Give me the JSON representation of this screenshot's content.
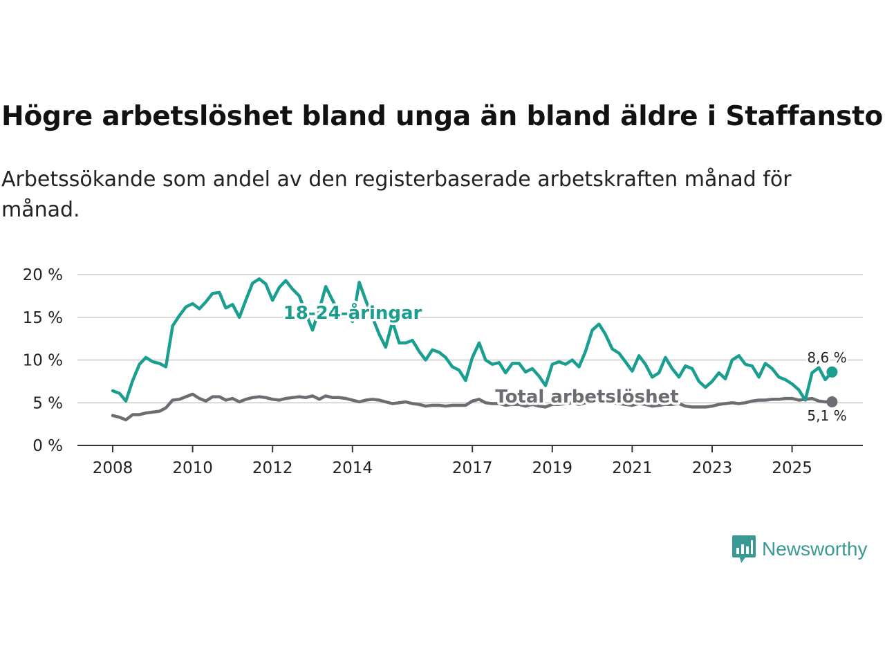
{
  "chart_data": {
    "type": "line",
    "title": "Högre arbetslöshet bland unga än bland äldre i Staffanstorp",
    "subtitle": "Arbetssökande som andel av den registerbaserade arbetskraften månad för månad.",
    "xlabel": "",
    "ylabel": "",
    "ylim": [
      0,
      20
    ],
    "xlim": [
      2008,
      2026
    ],
    "y_ticks": [
      "0 %",
      "5 %",
      "10 %",
      "15 %",
      "20 %"
    ],
    "x_ticks": [
      "2008",
      "2010",
      "2012",
      "2014",
      "2017",
      "2019",
      "2021",
      "2023",
      "2025"
    ],
    "grid": "horizontal",
    "series": [
      {
        "name": "18-24-åringar",
        "color": "#1a9e90",
        "end_label": "8,6 %",
        "x": [
          2008.0,
          2008.17,
          2008.33,
          2008.5,
          2008.67,
          2008.83,
          2009.0,
          2009.17,
          2009.33,
          2009.5,
          2009.67,
          2009.83,
          2010.0,
          2010.17,
          2010.33,
          2010.5,
          2010.67,
          2010.83,
          2011.0,
          2011.17,
          2011.33,
          2011.5,
          2011.67,
          2011.83,
          2012.0,
          2012.17,
          2012.33,
          2012.5,
          2012.67,
          2012.83,
          2013.0,
          2013.17,
          2013.33,
          2013.5,
          2013.67,
          2013.83,
          2014.0,
          2014.17,
          2014.33,
          2014.5,
          2014.67,
          2014.83,
          2015.0,
          2015.17,
          2015.33,
          2015.5,
          2015.67,
          2015.83,
          2016.0,
          2016.17,
          2016.33,
          2016.5,
          2016.67,
          2016.83,
          2017.0,
          2017.17,
          2017.33,
          2017.5,
          2017.67,
          2017.83,
          2018.0,
          2018.17,
          2018.33,
          2018.5,
          2018.67,
          2018.83,
          2019.0,
          2019.17,
          2019.33,
          2019.5,
          2019.67,
          2019.83,
          2020.0,
          2020.17,
          2020.33,
          2020.5,
          2020.67,
          2020.83,
          2021.0,
          2021.17,
          2021.33,
          2021.5,
          2021.67,
          2021.83,
          2022.0,
          2022.17,
          2022.33,
          2022.5,
          2022.67,
          2022.83,
          2023.0,
          2023.17,
          2023.33,
          2023.5,
          2023.67,
          2023.83,
          2024.0,
          2024.17,
          2024.33,
          2024.5,
          2024.67,
          2024.83,
          2025.0,
          2025.17,
          2025.33,
          2025.5,
          2025.67,
          2025.83,
          2026.0
        ],
        "values": [
          6.4,
          6.1,
          5.2,
          7.6,
          9.5,
          10.3,
          9.8,
          9.6,
          9.2,
          14.0,
          15.2,
          16.2,
          16.6,
          16.0,
          16.8,
          17.8,
          17.9,
          16.1,
          16.5,
          15.0,
          17.0,
          19.0,
          19.5,
          18.9,
          17.0,
          18.5,
          19.3,
          18.3,
          17.5,
          15.5,
          13.5,
          15.9,
          18.6,
          17.0,
          15.5,
          15.5,
          14.5,
          19.1,
          17.0,
          15.0,
          13.0,
          11.5,
          14.5,
          12.0,
          12.0,
          12.3,
          11.0,
          10.0,
          11.2,
          10.9,
          10.3,
          9.2,
          8.8,
          7.6,
          10.3,
          12.0,
          10.0,
          9.5,
          9.7,
          8.5,
          9.6,
          9.6,
          8.6,
          9.0,
          8.1,
          7.0,
          9.5,
          9.8,
          9.5,
          10.0,
          9.2,
          11.0,
          13.5,
          14.2,
          13.0,
          11.3,
          10.8,
          9.8,
          8.7,
          10.5,
          9.5,
          8.0,
          8.5,
          10.3,
          9.0,
          8.0,
          9.3,
          9.0,
          7.5,
          6.8,
          7.5,
          8.5,
          7.8,
          10.0,
          10.5,
          9.5,
          9.3,
          8.0,
          9.6,
          9.0,
          8.0,
          7.7,
          7.2,
          6.5,
          5.3,
          8.5,
          9.1,
          7.7,
          8.6
        ]
      },
      {
        "name": "Total arbetslöshet",
        "color": "#6d6c72",
        "end_label": "5,1 %",
        "x": [
          2008.0,
          2008.17,
          2008.33,
          2008.5,
          2008.67,
          2008.83,
          2009.0,
          2009.17,
          2009.33,
          2009.5,
          2009.67,
          2009.83,
          2010.0,
          2010.17,
          2010.33,
          2010.5,
          2010.67,
          2010.83,
          2011.0,
          2011.17,
          2011.33,
          2011.5,
          2011.67,
          2011.83,
          2012.0,
          2012.17,
          2012.33,
          2012.5,
          2012.67,
          2012.83,
          2013.0,
          2013.17,
          2013.33,
          2013.5,
          2013.67,
          2013.83,
          2014.0,
          2014.17,
          2014.33,
          2014.5,
          2014.67,
          2014.83,
          2015.0,
          2015.17,
          2015.33,
          2015.5,
          2015.67,
          2015.83,
          2016.0,
          2016.17,
          2016.33,
          2016.5,
          2016.67,
          2016.83,
          2017.0,
          2017.17,
          2017.33,
          2017.5,
          2017.67,
          2017.83,
          2018.0,
          2018.17,
          2018.33,
          2018.5,
          2018.67,
          2018.83,
          2019.0,
          2019.17,
          2019.33,
          2019.5,
          2019.67,
          2019.83,
          2020.0,
          2020.17,
          2020.33,
          2020.5,
          2020.67,
          2020.83,
          2021.0,
          2021.17,
          2021.33,
          2021.5,
          2021.67,
          2021.83,
          2022.0,
          2022.17,
          2022.33,
          2022.5,
          2022.67,
          2022.83,
          2023.0,
          2023.17,
          2023.33,
          2023.5,
          2023.67,
          2023.83,
          2024.0,
          2024.17,
          2024.33,
          2024.5,
          2024.67,
          2024.83,
          2025.0,
          2025.17,
          2025.33,
          2025.5,
          2025.67,
          2025.83,
          2026.0
        ],
        "values": [
          3.5,
          3.3,
          3.0,
          3.6,
          3.6,
          3.8,
          3.9,
          4.0,
          4.4,
          5.3,
          5.4,
          5.7,
          6.0,
          5.5,
          5.2,
          5.7,
          5.7,
          5.3,
          5.5,
          5.1,
          5.4,
          5.6,
          5.7,
          5.6,
          5.4,
          5.3,
          5.5,
          5.6,
          5.7,
          5.6,
          5.8,
          5.4,
          5.8,
          5.6,
          5.6,
          5.5,
          5.3,
          5.1,
          5.3,
          5.4,
          5.3,
          5.1,
          4.9,
          5.0,
          5.1,
          4.9,
          4.8,
          4.6,
          4.7,
          4.7,
          4.6,
          4.7,
          4.7,
          4.7,
          5.2,
          5.4,
          5.0,
          4.9,
          4.9,
          4.7,
          4.8,
          4.8,
          4.6,
          4.8,
          4.6,
          4.5,
          4.8,
          4.8,
          4.9,
          5.0,
          4.8,
          5.0,
          5.2,
          5.3,
          5.2,
          5.0,
          4.9,
          4.8,
          4.7,
          4.9,
          4.8,
          4.6,
          4.7,
          4.8,
          4.8,
          4.9,
          4.6,
          4.5,
          4.5,
          4.5,
          4.6,
          4.8,
          4.9,
          5.0,
          4.9,
          5.0,
          5.2,
          5.3,
          5.3,
          5.4,
          5.4,
          5.5,
          5.5,
          5.3,
          5.4,
          5.5,
          5.2,
          5.1,
          5.1
        ]
      }
    ]
  },
  "brand": {
    "name": "Newsworthy",
    "icon": "chat-bar-chart-icon",
    "color": "#3a9a93"
  }
}
